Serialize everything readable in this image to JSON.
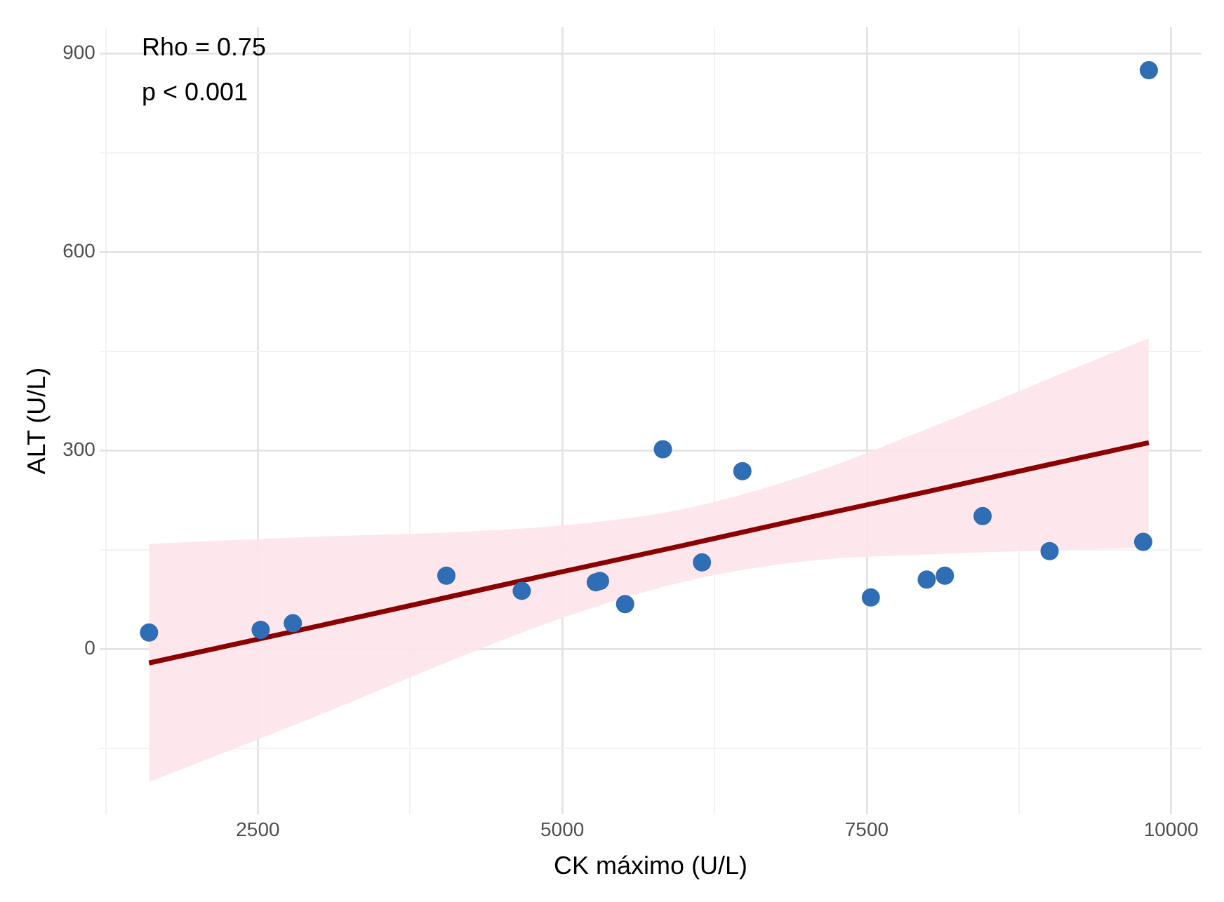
{
  "chart_data": {
    "type": "scatter",
    "xlabel": "CK máximo (U/L)",
    "ylabel": "ALT (U/L)",
    "annotations": [
      "Rho = 0.75",
      "p < 0.001"
    ],
    "xlim": [
      1200,
      10250
    ],
    "ylim": [
      -250,
      940
    ],
    "xticks": [
      {
        "value": 1250,
        "label": null
      },
      2500,
      {
        "value": 3750,
        "label": null
      },
      5000,
      {
        "value": 6250,
        "label": null
      },
      7500,
      {
        "value": 8750,
        "label": null
      },
      10000
    ],
    "yticks": [
      {
        "value": -150,
        "label": null
      },
      0,
      {
        "value": 150,
        "label": null
      },
      300,
      {
        "value": 450,
        "label": null
      },
      600,
      {
        "value": 750,
        "label": null
      },
      900
    ],
    "grid": true,
    "legend": false,
    "series": [
      {
        "marker": "circle",
        "color": "#2f6db5",
        "x": [
          1606,
          2523,
          2787,
          4048,
          4667,
          5275,
          5310,
          5516,
          5826,
          6147,
          6479,
          7534,
          7993,
          8142,
          8452,
          9002,
          9771,
          9817
        ],
        "values": [
          25,
          29,
          39,
          111,
          88,
          101,
          103,
          68,
          302,
          131,
          269,
          78,
          105,
          111,
          201,
          148,
          162,
          875
        ]
      },
      {
        "type": "line",
        "color": "#8b0000",
        "x": [
          1606,
          3000,
          4000,
          5000,
          6000,
          7000,
          8000,
          9000,
          9817
        ],
        "values": [
          -21,
          35,
          76,
          117,
          157,
          198,
          238,
          279,
          312
        ],
        "lower": [
          -201,
          -100,
          -24,
          47,
          102,
          133,
          143,
          149,
          154
        ],
        "upper": [
          159,
          170,
          176,
          187,
          212,
          263,
          333,
          409,
          470
        ]
      }
    ]
  }
}
